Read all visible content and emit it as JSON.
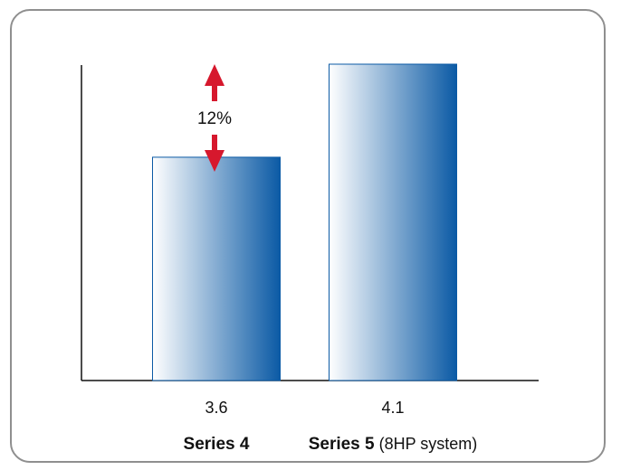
{
  "chart_data": {
    "type": "bar",
    "categories": [
      "Series 4",
      "Series 5"
    ],
    "category_suffixes": [
      "",
      "(8HP system)"
    ],
    "value_labels": [
      "3.6",
      "4.1"
    ],
    "values": [
      3.6,
      4.1
    ],
    "ylim": [
      2.4,
      4.1
    ],
    "annotation": {
      "text": "12%",
      "color": "#d6182d"
    },
    "bar_gradient": [
      "#ffffff",
      "#0b5aa5"
    ],
    "bar_border": "#0b5aa5",
    "axis_color": "#111111",
    "frame_border": "#8f8f8f"
  }
}
